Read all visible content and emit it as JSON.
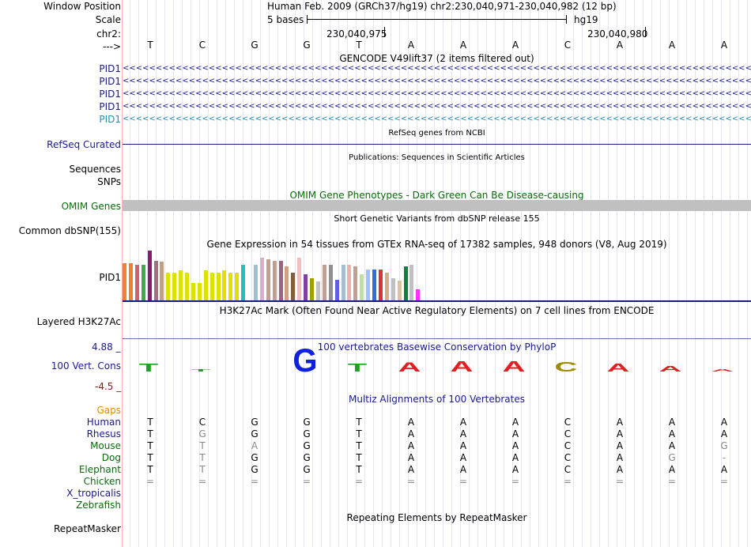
{
  "colors": {
    "navy": "#1a1a8c",
    "green": "#0a6b0a",
    "orange": "#e08a00",
    "pid1_blue": "#1a1a8c",
    "pid1_light": "#2a8cb0",
    "bar_gray": "#c0c0c0",
    "maroon": "#8b1a1a",
    "separator": "#ffb0b0"
  },
  "header": {
    "window_position_label": "Window Position",
    "scale_label": "Scale",
    "chr_label": "chr2:",
    "arrow_label": "--->",
    "assembly_text": "Human Feb. 2009 (GRCh37/hg19)   chr2:230,040,971-230,040,982 (12 bp)",
    "scale_text": "5 bases",
    "scale_assembly": "hg19",
    "coord1": "230,040,975",
    "coord2": "230,040,980",
    "bases": [
      "T",
      "C",
      "G",
      "G",
      "T",
      "A",
      "A",
      "A",
      "C",
      "A",
      "A",
      "A"
    ]
  },
  "gencode": {
    "title": "GENCODE V49lift37 (2 items filtered out)",
    "transcripts": [
      "PID1",
      "PID1",
      "PID1",
      "PID1",
      "PID1"
    ]
  },
  "refseq": {
    "title": "RefSeq genes from NCBI",
    "label": "RefSeq Curated"
  },
  "publications": {
    "title": "Publications: Sequences in Scientific Articles",
    "labels": [
      "Sequences",
      "SNPs"
    ]
  },
  "omim": {
    "title": "OMIM Gene Phenotypes - Dark Green Can Be Disease-causing",
    "label": "OMIM Genes"
  },
  "dbsnp": {
    "title": "Short Genetic Variants from dbSNP release 155",
    "label": "Common dbSNP(155)"
  },
  "gtex": {
    "title": "Gene Expression in 54 tissues from GTEx RNA-seq of 17382 samples, 948 donors (V8, Aug 2019)",
    "label": "PID1",
    "bars": [
      {
        "h": 0.75,
        "c": "#f08030"
      },
      {
        "h": 0.75,
        "c": "#f08030"
      },
      {
        "h": 0.72,
        "c": "#d06070"
      },
      {
        "h": 0.72,
        "c": "#44aa44"
      },
      {
        "h": 1.0,
        "c": "#8b1a6b"
      },
      {
        "h": 0.8,
        "c": "#a07080"
      },
      {
        "h": 0.78,
        "c": "#c0a080"
      },
      {
        "h": 0.55,
        "c": "#e0e000"
      },
      {
        "h": 0.55,
        "c": "#e0e000"
      },
      {
        "h": 0.6,
        "c": "#e0e000"
      },
      {
        "h": 0.55,
        "c": "#e0e000"
      },
      {
        "h": 0.35,
        "c": "#e0e000"
      },
      {
        "h": 0.35,
        "c": "#e0e000"
      },
      {
        "h": 0.6,
        "c": "#e0e000"
      },
      {
        "h": 0.55,
        "c": "#e0e000"
      },
      {
        "h": 0.55,
        "c": "#e0e000"
      },
      {
        "h": 0.6,
        "c": "#e0e000"
      },
      {
        "h": 0.55,
        "c": "#e0e000"
      },
      {
        "h": 0.55,
        "c": "#e0e000"
      },
      {
        "h": 0.72,
        "c": "#20c0c0"
      },
      {
        "h": 0.0,
        "c": "#ffffff"
      },
      {
        "h": 0.72,
        "c": "#a0c0d0"
      },
      {
        "h": 0.85,
        "c": "#d8b0c8"
      },
      {
        "h": 0.82,
        "c": "#c0a090"
      },
      {
        "h": 0.8,
        "c": "#c0a090"
      },
      {
        "h": 0.8,
        "c": "#a06080"
      },
      {
        "h": 0.68,
        "c": "#d0a080"
      },
      {
        "h": 0.55,
        "c": "#806040"
      },
      {
        "h": 0.85,
        "c": "#f0c0c0"
      },
      {
        "h": 0.52,
        "c": "#8040a0"
      },
      {
        "h": 0.45,
        "c": "#a0a000"
      },
      {
        "h": 0.38,
        "c": "#c0c0c0"
      },
      {
        "h": 0.72,
        "c": "#c0a090"
      },
      {
        "h": 0.72,
        "c": "#909090"
      },
      {
        "h": 0.42,
        "c": "#6060e0"
      },
      {
        "h": 0.72,
        "c": "#a0c0d0"
      },
      {
        "h": 0.72,
        "c": "#f0b0b0"
      },
      {
        "h": 0.68,
        "c": "#c0a090"
      },
      {
        "h": 0.52,
        "c": "#c0e0a0"
      },
      {
        "h": 0.62,
        "c": "#a0c0ff"
      },
      {
        "h": 0.62,
        "c": "#3070d0"
      },
      {
        "h": 0.62,
        "c": "#e03030"
      },
      {
        "h": 0.55,
        "c": "#d0b080"
      },
      {
        "h": 0.45,
        "c": "#c0c0c0"
      },
      {
        "h": 0.4,
        "c": "#e0c0a0"
      },
      {
        "h": 0.68,
        "c": "#108040"
      },
      {
        "h": 0.72,
        "c": "#c0c0c0"
      },
      {
        "h": 0.22,
        "c": "#ff30ff"
      }
    ]
  },
  "h3k27ac": {
    "title": "H3K27Ac Mark (Often Found Near Active Regulatory Elements) on 7 cell lines from ENCODE",
    "label": "Layered H3K27Ac"
  },
  "phylop": {
    "title": "100 vertebrates Basewise Conservation by PhyloP",
    "label": "100 Vert. Cons",
    "max": "4.88 _",
    "min": "-4.5 _",
    "letters": [
      {
        "b": "T",
        "c": "#20a020",
        "s": 0.35
      },
      {
        "b": "T",
        "c": "#20a020",
        "s": 0.08
      },
      {
        "b": "",
        "c": "#000",
        "s": 0
      },
      {
        "b": "G",
        "c": "#1020e0",
        "s": 1.0
      },
      {
        "b": "T",
        "c": "#20a020",
        "s": 0.35
      },
      {
        "b": "A",
        "c": "#e02020",
        "s": 0.4
      },
      {
        "b": "A",
        "c": "#e02020",
        "s": 0.45
      },
      {
        "b": "A",
        "c": "#e02020",
        "s": 0.45
      },
      {
        "b": "C",
        "c": "#a08a00",
        "s": 0.42
      },
      {
        "b": "A",
        "c": "#e02020",
        "s": 0.35
      },
      {
        "b": "A",
        "c": "#e02020",
        "s": 0.25
      },
      {
        "b": "A",
        "c": "#e02020",
        "s": 0.12
      }
    ]
  },
  "multiz": {
    "title": "Multiz Alignments of 100 Vertebrates",
    "gaps_label": "Gaps",
    "species": [
      {
        "name": "Human",
        "bases": [
          "T",
          "C",
          "G",
          "G",
          "T",
          "A",
          "A",
          "A",
          "C",
          "A",
          "A",
          "A"
        ],
        "gray": []
      },
      {
        "name": "Rhesus",
        "bases": [
          "T",
          "G",
          "G",
          "G",
          "T",
          "A",
          "A",
          "A",
          "C",
          "A",
          "A",
          "A"
        ],
        "gray": [
          1
        ]
      },
      {
        "name": "Mouse",
        "bases": [
          "T",
          "T",
          "A",
          "G",
          "T",
          "A",
          "A",
          "A",
          "C",
          "A",
          "A",
          "G"
        ],
        "gray": [
          1,
          2,
          11
        ]
      },
      {
        "name": "Dog",
        "bases": [
          "T",
          "T",
          "G",
          "G",
          "T",
          "A",
          "A",
          "A",
          "C",
          "A",
          "G",
          "-"
        ],
        "gray": [
          1,
          10,
          11
        ]
      },
      {
        "name": "Elephant",
        "bases": [
          "T",
          "T",
          "G",
          "G",
          "T",
          "A",
          "A",
          "A",
          "C",
          "A",
          "A",
          "A"
        ],
        "gray": [
          1
        ]
      },
      {
        "name": "Chicken",
        "bases": [
          "=",
          "=",
          "=",
          "=",
          "=",
          "=",
          "=",
          "=",
          "=",
          "=",
          "=",
          "="
        ],
        "gray": [
          0,
          1,
          2,
          3,
          4,
          5,
          6,
          7,
          8,
          9,
          10,
          11
        ]
      },
      {
        "name": "X_tropicalis",
        "bases": [],
        "gray": []
      },
      {
        "name": "Zebrafish",
        "bases": [],
        "gray": []
      }
    ]
  },
  "repeatmasker": {
    "title": "Repeating Elements by RepeatMasker",
    "label": "RepeatMasker"
  }
}
